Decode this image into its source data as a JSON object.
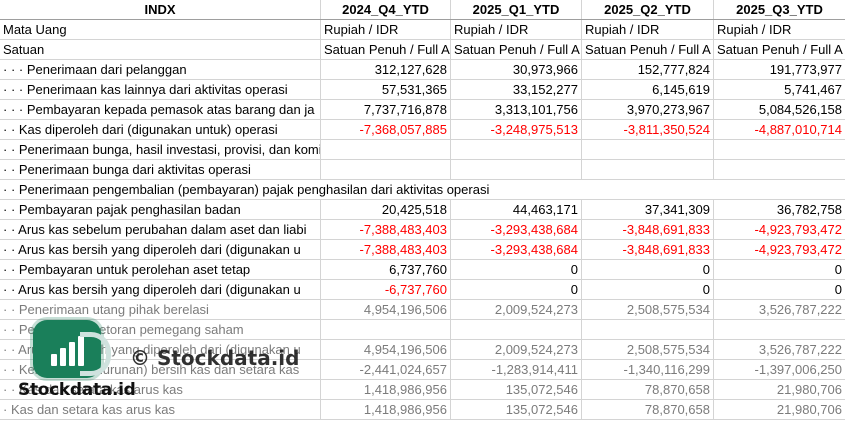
{
  "columns": [
    "INDX",
    "2024_Q4_YTD",
    "2025_Q1_YTD",
    "2025_Q2_YTD",
    "2025_Q3_YTD"
  ],
  "rows": [
    {
      "label": "Mata Uang",
      "values": [
        "Rupiah / IDR",
        "Rupiah / IDR",
        "Rupiah / IDR",
        "Rupiah / IDR"
      ],
      "type": "text"
    },
    {
      "label": "Satuan",
      "values": [
        "Satuan Penuh / Full A",
        "Satuan Penuh / Full A",
        "Satuan Penuh / Full A",
        "Satuan Penuh / Full A"
      ],
      "type": "text"
    },
    {
      "label": "· · · Penerimaan dari pelanggan",
      "values": [
        "312,127,628",
        "30,973,966",
        "152,777,824",
        "191,773,977"
      ]
    },
    {
      "label": "· · · Penerimaan kas lainnya dari aktivitas operasi",
      "values": [
        "57,531,365",
        "33,152,277",
        "6,145,619",
        "5,741,467"
      ]
    },
    {
      "label": "· · · Pembayaran kepada pemasok atas barang dan ja",
      "values": [
        "7,737,716,878",
        "3,313,101,756",
        "3,970,273,967",
        "5,084,526,158"
      ]
    },
    {
      "label": "· · Kas diperoleh dari (digunakan untuk) operasi",
      "values": [
        "-7,368,057,885",
        "-3,248,975,513",
        "-3,811,350,524",
        "-4,887,010,714"
      ]
    },
    {
      "label": "· · Penerimaan bunga, hasil investasi, provisi, dan komisi",
      "values": [
        "",
        "",
        "",
        ""
      ]
    },
    {
      "label": "· · Penerimaan bunga dari aktivitas operasi",
      "values": [
        "",
        "",
        "",
        ""
      ]
    },
    {
      "label": "· · Penerimaan pengembalian (pembayaran) pajak penghasilan dari aktivitas operasi",
      "values": [
        "",
        "",
        "",
        ""
      ],
      "span": true
    },
    {
      "label": "· · Pembayaran pajak penghasilan badan",
      "values": [
        "20,425,518",
        "44,463,171",
        "37,341,309",
        "36,782,758"
      ]
    },
    {
      "label": "· · Arus kas sebelum perubahan dalam aset dan liabi",
      "values": [
        "-7,388,483,403",
        "-3,293,438,684",
        "-3,848,691,833",
        "-4,923,793,472"
      ]
    },
    {
      "label": "· · Arus kas bersih yang diperoleh dari (digunakan u",
      "values": [
        "-7,388,483,403",
        "-3,293,438,684",
        "-3,848,691,833",
        "-4,923,793,472"
      ]
    },
    {
      "label": "· · Pembayaran untuk perolehan aset tetap",
      "values": [
        "6,737,760",
        "0",
        "0",
        "0"
      ]
    },
    {
      "label": "· · Arus kas bersih yang diperoleh dari (digunakan u",
      "values": [
        "-6,737,760",
        "0",
        "0",
        "0"
      ]
    },
    {
      "label": "· · Penerimaan utang pihak berelasi",
      "values": [
        "4,954,196,506",
        "2,009,524,273",
        "2,508,575,534",
        "3,526,787,222"
      ],
      "faded": true
    },
    {
      "label": "· · Penerimaan setoran pemegang saham",
      "values": [
        "",
        "",
        "",
        ""
      ],
      "faded": true
    },
    {
      "label": "· · Arus kas bersih yang diperoleh dari (digunakan u",
      "values": [
        "4,954,196,506",
        "2,009,524,273",
        "2,508,575,534",
        "3,526,787,222"
      ],
      "faded": true
    },
    {
      "label": "· · Kenaikan (penurunan) bersih kas dan setara kas",
      "values": [
        "-2,441,024,657",
        "-1,283,914,411",
        "-1,340,116,299",
        "-1,397,006,250"
      ],
      "faded": true
    },
    {
      "label": "· · Kas dan setara kas arus kas",
      "values": [
        "1,418,986,956",
        "135,072,546",
        "78,870,658",
        "21,980,706"
      ],
      "faded": true
    },
    {
      "label": "· Kas dan setara kas arus kas",
      "values": [
        "1,418,986,956",
        "135,072,546",
        "78,870,658",
        "21,980,706"
      ],
      "faded": true
    }
  ],
  "watermark": {
    "brand": "Stockdata.id",
    "center": "© Stockdata.id",
    "logo_color": "#1a7f5a"
  },
  "colors": {
    "negative": "#ff0000",
    "grid": "#d4d4d4"
  }
}
